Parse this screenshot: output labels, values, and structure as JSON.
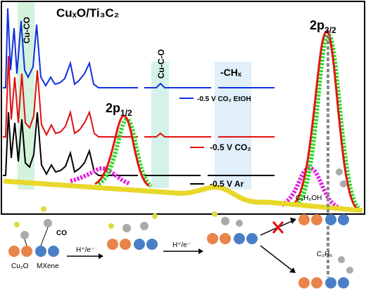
{
  "figure": {
    "title": "CuₓO/Ti₃C₂",
    "bands": [
      "Cu-CO",
      "Cu-C-O",
      "-CHₓ"
    ],
    "peaks": [
      {
        "base": "2p",
        "sub": "1/2"
      },
      {
        "base": "2p",
        "sub": "3/2"
      }
    ],
    "legend": [
      "-0.5 V CO₂ EtOH",
      "-0.5 V CO₂",
      "-0.5 V Ar"
    ],
    "scheme": {
      "co": "CO",
      "cu2o": "Cu₂O",
      "mxene": "MXene",
      "step1": "H⁺/e⁻",
      "step2": "H⁺/e⁻",
      "ethanol": "C₂H₅OH",
      "ethane": "C₂H₆"
    }
  }
}
